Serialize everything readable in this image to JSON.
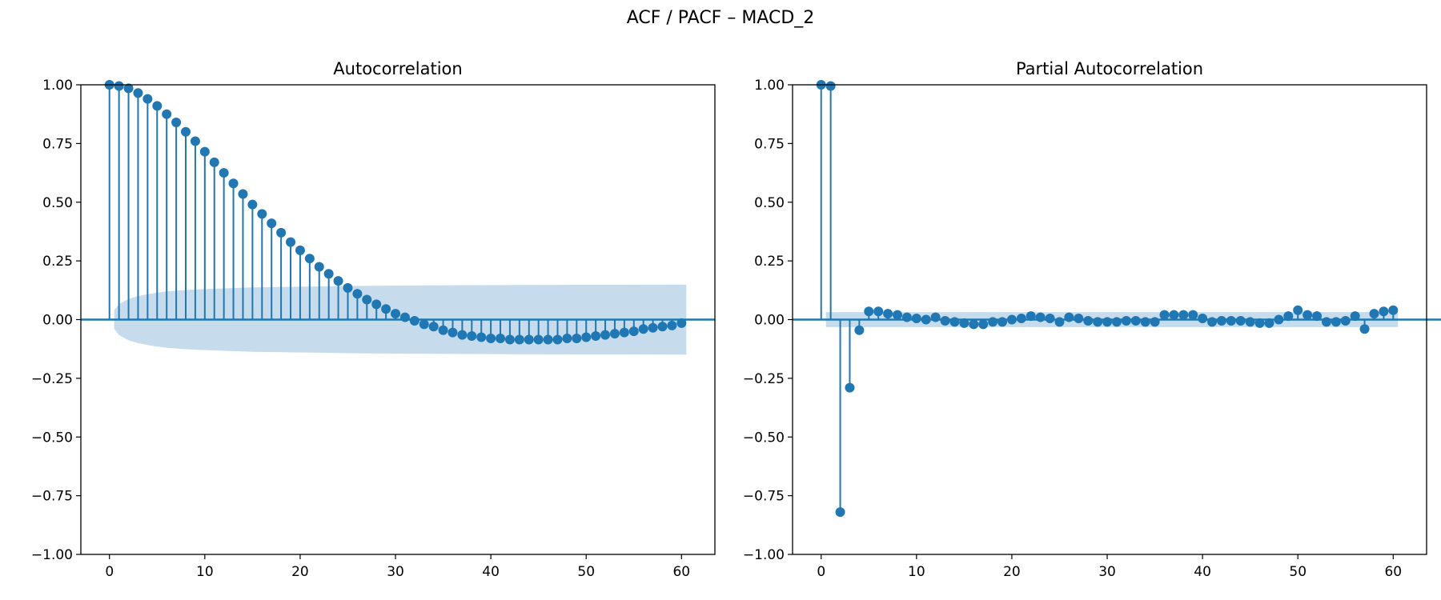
{
  "figure": {
    "suptitle": "ACF / PACF – MACD_2"
  },
  "colors": {
    "series": "#1f77b4",
    "band": "#c6dcec",
    "axis": "#000000"
  },
  "chart_data": [
    {
      "type": "stem",
      "title": "Autocorrelation",
      "xlabel": "",
      "ylabel": "",
      "xlim": [
        -3,
        63.5
      ],
      "ylim": [
        -1.0,
        1.0
      ],
      "xticks": [
        0,
        10,
        20,
        30,
        40,
        50,
        60
      ],
      "yticks": [
        -1.0,
        -0.75,
        -0.5,
        -0.25,
        0.0,
        0.25,
        0.5,
        0.75,
        1.0
      ],
      "ytick_labels": [
        "−1.00",
        "−0.75",
        "−0.50",
        "−0.25",
        "0.00",
        "0.25",
        "0.50",
        "0.75",
        "1.00"
      ],
      "grid": false,
      "lags": [
        0,
        1,
        2,
        3,
        4,
        5,
        6,
        7,
        8,
        9,
        10,
        11,
        12,
        13,
        14,
        15,
        16,
        17,
        18,
        19,
        20,
        21,
        22,
        23,
        24,
        25,
        26,
        27,
        28,
        29,
        30,
        31,
        32,
        33,
        34,
        35,
        36,
        37,
        38,
        39,
        40,
        41,
        42,
        43,
        44,
        45,
        46,
        47,
        48,
        49,
        50,
        51,
        52,
        53,
        54,
        55,
        56,
        57,
        58,
        59,
        60
      ],
      "values": [
        1.0,
        0.995,
        0.985,
        0.965,
        0.94,
        0.91,
        0.875,
        0.84,
        0.8,
        0.76,
        0.715,
        0.67,
        0.625,
        0.58,
        0.535,
        0.49,
        0.45,
        0.41,
        0.37,
        0.33,
        0.295,
        0.26,
        0.225,
        0.195,
        0.165,
        0.135,
        0.11,
        0.085,
        0.065,
        0.045,
        0.025,
        0.01,
        -0.005,
        -0.02,
        -0.03,
        -0.045,
        -0.055,
        -0.065,
        -0.07,
        -0.075,
        -0.08,
        -0.08,
        -0.085,
        -0.085,
        -0.085,
        -0.085,
        -0.085,
        -0.085,
        -0.08,
        -0.08,
        -0.075,
        -0.07,
        -0.065,
        -0.06,
        -0.055,
        -0.05,
        -0.04,
        -0.035,
        -0.03,
        -0.025,
        -0.015
      ],
      "confidence_band": {
        "lags": [
          0.5,
          1,
          2,
          3,
          4,
          5,
          6,
          8,
          10,
          12,
          15,
          20,
          25,
          30,
          35,
          40,
          50,
          60.5
        ],
        "upper": [
          0.04,
          0.066,
          0.088,
          0.1,
          0.108,
          0.115,
          0.12,
          0.126,
          0.13,
          0.133,
          0.137,
          0.14,
          0.143,
          0.145,
          0.146,
          0.147,
          0.148,
          0.149
        ]
      }
    },
    {
      "type": "stem",
      "title": "Partial Autocorrelation",
      "xlabel": "",
      "ylabel": "",
      "xlim": [
        -3,
        63.5
      ],
      "ylim": [
        -1.0,
        1.0
      ],
      "xticks": [
        0,
        10,
        20,
        30,
        40,
        50,
        60
      ],
      "yticks": [
        -1.0,
        -0.75,
        -0.5,
        -0.25,
        0.0,
        0.25,
        0.5,
        0.75,
        1.0
      ],
      "ytick_labels": [
        "−1.00",
        "−0.75",
        "−0.50",
        "−0.25",
        "0.00",
        "0.25",
        "0.50",
        "0.75",
        "1.00"
      ],
      "grid": false,
      "lags": [
        0,
        1,
        2,
        3,
        4,
        5,
        6,
        7,
        8,
        9,
        10,
        11,
        12,
        13,
        14,
        15,
        16,
        17,
        18,
        19,
        20,
        21,
        22,
        23,
        24,
        25,
        26,
        27,
        28,
        29,
        30,
        31,
        32,
        33,
        34,
        35,
        36,
        37,
        38,
        39,
        40,
        41,
        42,
        43,
        44,
        45,
        46,
        47,
        48,
        49,
        50,
        51,
        52,
        53,
        54,
        55,
        56,
        57,
        58,
        59,
        60
      ],
      "values": [
        1.0,
        0.995,
        -0.82,
        -0.29,
        -0.045,
        0.035,
        0.035,
        0.025,
        0.02,
        0.01,
        0.005,
        0.0,
        0.01,
        -0.005,
        -0.01,
        -0.015,
        -0.02,
        -0.02,
        -0.01,
        -0.01,
        0.0,
        0.005,
        0.015,
        0.01,
        0.005,
        -0.01,
        0.01,
        0.005,
        -0.005,
        -0.01,
        -0.01,
        -0.01,
        -0.005,
        -0.005,
        -0.01,
        -0.01,
        0.02,
        0.02,
        0.02,
        0.02,
        0.005,
        -0.01,
        -0.005,
        -0.005,
        -0.005,
        -0.01,
        -0.015,
        -0.015,
        0.0,
        0.015,
        0.04,
        0.02,
        0.015,
        -0.01,
        -0.01,
        -0.005,
        0.015,
        -0.04,
        0.025,
        0.035,
        0.04
      ],
      "confidence_band": {
        "lags": [
          0.5,
          60.5
        ],
        "upper": [
          0.032,
          0.032
        ]
      }
    }
  ]
}
